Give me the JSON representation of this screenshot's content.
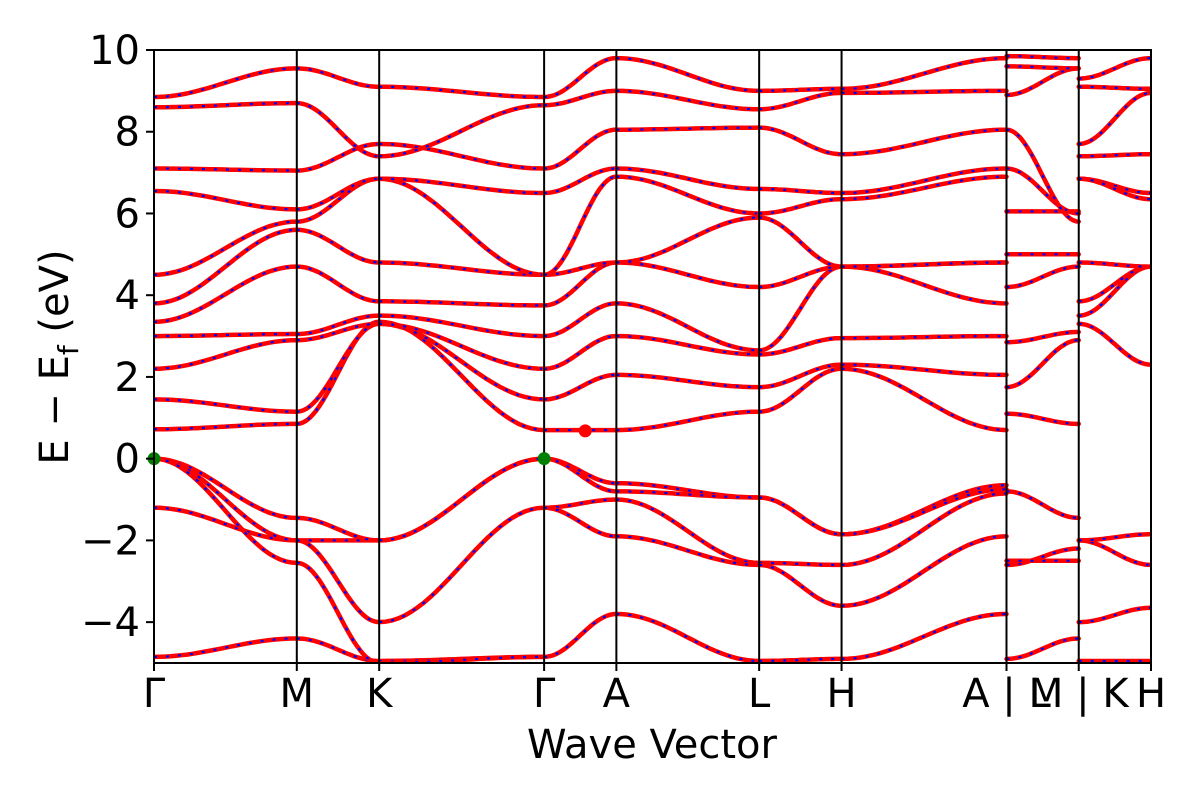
{
  "chart_data": {
    "type": "line",
    "title": "",
    "xlabel": "Wave Vector",
    "ylabel_main": "E − E",
    "ylabel_sub": "f",
    "ylabel_unit": " (eV)",
    "ylim": [
      -5,
      10
    ],
    "yticks": [
      -4,
      -2,
      0,
      2,
      4,
      6,
      8,
      10
    ],
    "ytick_labels": [
      "−4",
      "−2",
      "0",
      "2",
      "4",
      "6",
      "8",
      "10"
    ],
    "k_path": [
      {
        "label": "Γ",
        "pos": 0.0
      },
      {
        "label": "M",
        "pos": 1.0
      },
      {
        "label": "K",
        "pos": 1.577
      },
      {
        "label": "Γ",
        "pos": 2.732
      },
      {
        "label": "A",
        "pos": 3.238
      },
      {
        "label": "L",
        "pos": 4.238
      },
      {
        "label": "H",
        "pos": 4.815
      },
      {
        "label": "A | L",
        "pos": 5.97
      },
      {
        "label": "M | K",
        "pos": 6.476
      },
      {
        "label": "H",
        "pos": 6.982
      }
    ],
    "xlim": [
      0,
      6.982
    ],
    "line_colors": {
      "bands": "#ff0000",
      "overlay": "#0000ff"
    },
    "vbm": {
      "k": [
        0.0,
        2.732
      ],
      "energy": 0.0,
      "color": "#008000"
    },
    "cbm": {
      "k": 3.02,
      "energy": 0.68,
      "color": "#ff0000"
    },
    "series": [
      {
        "segment": "Γ-M",
        "k": [
          0,
          1
        ],
        "bands": [
          [
            -4.85,
            -4.4
          ],
          [
            -1.2,
            -2.0
          ],
          [
            0.0,
            -1.45
          ],
          [
            0.0,
            -2.0
          ],
          [
            0.0,
            -2.55
          ],
          [
            0.72,
            0.85
          ],
          [
            1.45,
            1.15
          ],
          [
            2.2,
            2.9
          ],
          [
            3.0,
            3.05
          ],
          [
            3.35,
            4.7
          ],
          [
            3.8,
            5.6
          ],
          [
            4.5,
            5.8
          ],
          [
            6.55,
            6.1
          ],
          [
            7.1,
            7.05
          ],
          [
            8.6,
            8.7
          ],
          [
            8.85,
            9.55
          ]
        ]
      },
      {
        "segment": "M-K",
        "k": [
          1,
          1.577
        ],
        "bands": [
          [
            -4.4,
            -4.95
          ],
          [
            -2.0,
            -2.0
          ],
          [
            -1.45,
            -2.0
          ],
          [
            -2.0,
            -4.0
          ],
          [
            -2.55,
            -5.0
          ],
          [
            0.85,
            3.35
          ],
          [
            1.15,
            3.3
          ],
          [
            2.9,
            3.3
          ],
          [
            3.05,
            3.5
          ],
          [
            4.7,
            3.85
          ],
          [
            5.6,
            4.8
          ],
          [
            5.8,
            6.85
          ],
          [
            6.1,
            6.85
          ],
          [
            7.05,
            7.7
          ],
          [
            8.7,
            7.4
          ],
          [
            9.55,
            9.1
          ]
        ]
      },
      {
        "segment": "K-Γ",
        "k": [
          1.577,
          2.732
        ],
        "bands": [
          [
            -4.95,
            -4.85
          ],
          [
            -2.0,
            0.0
          ],
          [
            -2.0,
            0.0
          ],
          [
            -4.0,
            -1.2
          ],
          [
            -5.0,
            -4.85
          ],
          [
            3.35,
            0.7
          ],
          [
            3.3,
            1.45
          ],
          [
            3.3,
            2.2
          ],
          [
            3.5,
            3.0
          ],
          [
            3.85,
            3.75
          ],
          [
            4.8,
            4.5
          ],
          [
            6.85,
            4.5
          ],
          [
            6.85,
            6.5
          ],
          [
            7.7,
            7.1
          ],
          [
            7.4,
            8.65
          ],
          [
            9.1,
            8.85
          ]
        ]
      },
      {
        "segment": "Γ-A",
        "k": [
          2.732,
          3.238
        ],
        "bands": [
          [
            -4.85,
            -3.8
          ],
          [
            0.0,
            -0.6
          ],
          [
            0.0,
            -0.8
          ],
          [
            -1.2,
            -1.0
          ],
          [
            -1.2,
            -1.9
          ],
          [
            0.7,
            0.7
          ],
          [
            1.45,
            2.05
          ],
          [
            2.2,
            3.0
          ],
          [
            3.0,
            3.8
          ],
          [
            3.75,
            4.8
          ],
          [
            4.5,
            4.8
          ],
          [
            4.5,
            6.9
          ],
          [
            6.5,
            7.1
          ],
          [
            7.1,
            8.05
          ],
          [
            8.65,
            9.0
          ],
          [
            8.85,
            9.8
          ]
        ]
      },
      {
        "segment": "A-L",
        "k": [
          3.238,
          4.238
        ],
        "bands": [
          [
            -3.8,
            -4.95
          ],
          [
            -0.6,
            -0.95
          ],
          [
            -0.8,
            -0.95
          ],
          [
            -1.0,
            -2.55
          ],
          [
            -1.9,
            -2.6
          ],
          [
            0.7,
            1.15
          ],
          [
            2.05,
            1.75
          ],
          [
            3.0,
            2.55
          ],
          [
            3.8,
            2.65
          ],
          [
            4.8,
            4.2
          ],
          [
            4.8,
            5.9
          ],
          [
            6.9,
            6.0
          ],
          [
            7.1,
            6.6
          ],
          [
            8.05,
            8.1
          ],
          [
            9.0,
            8.55
          ],
          [
            9.8,
            9.0
          ]
        ]
      },
      {
        "segment": "L-H",
        "k": [
          4.238,
          4.815
        ],
        "bands": [
          [
            -4.95,
            -4.9
          ],
          [
            -0.95,
            -1.85
          ],
          [
            -0.95,
            -1.85
          ],
          [
            -2.55,
            -2.6
          ],
          [
            -2.6,
            -3.6
          ],
          [
            1.15,
            2.2
          ],
          [
            1.75,
            2.3
          ],
          [
            2.55,
            2.95
          ],
          [
            2.65,
            4.7
          ],
          [
            4.2,
            4.7
          ],
          [
            5.9,
            4.7
          ],
          [
            6.0,
            6.35
          ],
          [
            6.6,
            6.5
          ],
          [
            8.1,
            7.45
          ],
          [
            8.55,
            8.95
          ],
          [
            9.0,
            9.05
          ]
        ]
      },
      {
        "segment": "H-A",
        "k": [
          4.815,
          5.97
        ],
        "bands": [
          [
            -4.9,
            -3.8
          ],
          [
            -1.85,
            -0.65
          ],
          [
            -1.85,
            -0.75
          ],
          [
            -2.6,
            -0.85
          ],
          [
            -3.6,
            -1.9
          ],
          [
            2.2,
            0.7
          ],
          [
            2.3,
            2.05
          ],
          [
            2.95,
            3.0
          ],
          [
            4.7,
            3.8
          ],
          [
            4.7,
            4.8
          ],
          [
            4.7,
            4.8
          ],
          [
            6.35,
            6.9
          ],
          [
            6.5,
            7.1
          ],
          [
            7.45,
            8.05
          ],
          [
            8.95,
            9.0
          ],
          [
            9.05,
            9.8
          ]
        ]
      },
      {
        "segment": "L-M",
        "k": [
          5.97,
          6.476
        ],
        "bands": [
          [
            -4.9,
            -4.4
          ],
          [
            -2.6,
            -2.2
          ],
          [
            -2.5,
            -2.5
          ],
          [
            -0.8,
            -1.45
          ],
          [
            1.1,
            0.85
          ],
          [
            1.75,
            2.9
          ],
          [
            2.85,
            3.1
          ],
          [
            4.2,
            4.7
          ],
          [
            5.0,
            5.0
          ],
          [
            6.05,
            6.05
          ],
          [
            7.1,
            6.0
          ],
          [
            8.05,
            5.8
          ],
          [
            8.9,
            9.55
          ],
          [
            9.6,
            9.55
          ],
          [
            9.85,
            9.8
          ]
        ]
      },
      {
        "segment": "K-H",
        "k": [
          6.476,
          6.982
        ],
        "bands": [
          [
            -4.95,
            -4.95
          ],
          [
            -4.0,
            -3.65
          ],
          [
            -2.0,
            -2.6
          ],
          [
            -2.0,
            -1.85
          ],
          [
            3.3,
            2.3
          ],
          [
            3.5,
            4.7
          ],
          [
            3.85,
            4.7
          ],
          [
            4.8,
            4.7
          ],
          [
            6.85,
            6.5
          ],
          [
            6.85,
            6.35
          ],
          [
            7.4,
            7.45
          ],
          [
            7.7,
            8.95
          ],
          [
            9.1,
            9.05
          ],
          [
            9.3,
            9.8
          ]
        ]
      }
    ]
  }
}
